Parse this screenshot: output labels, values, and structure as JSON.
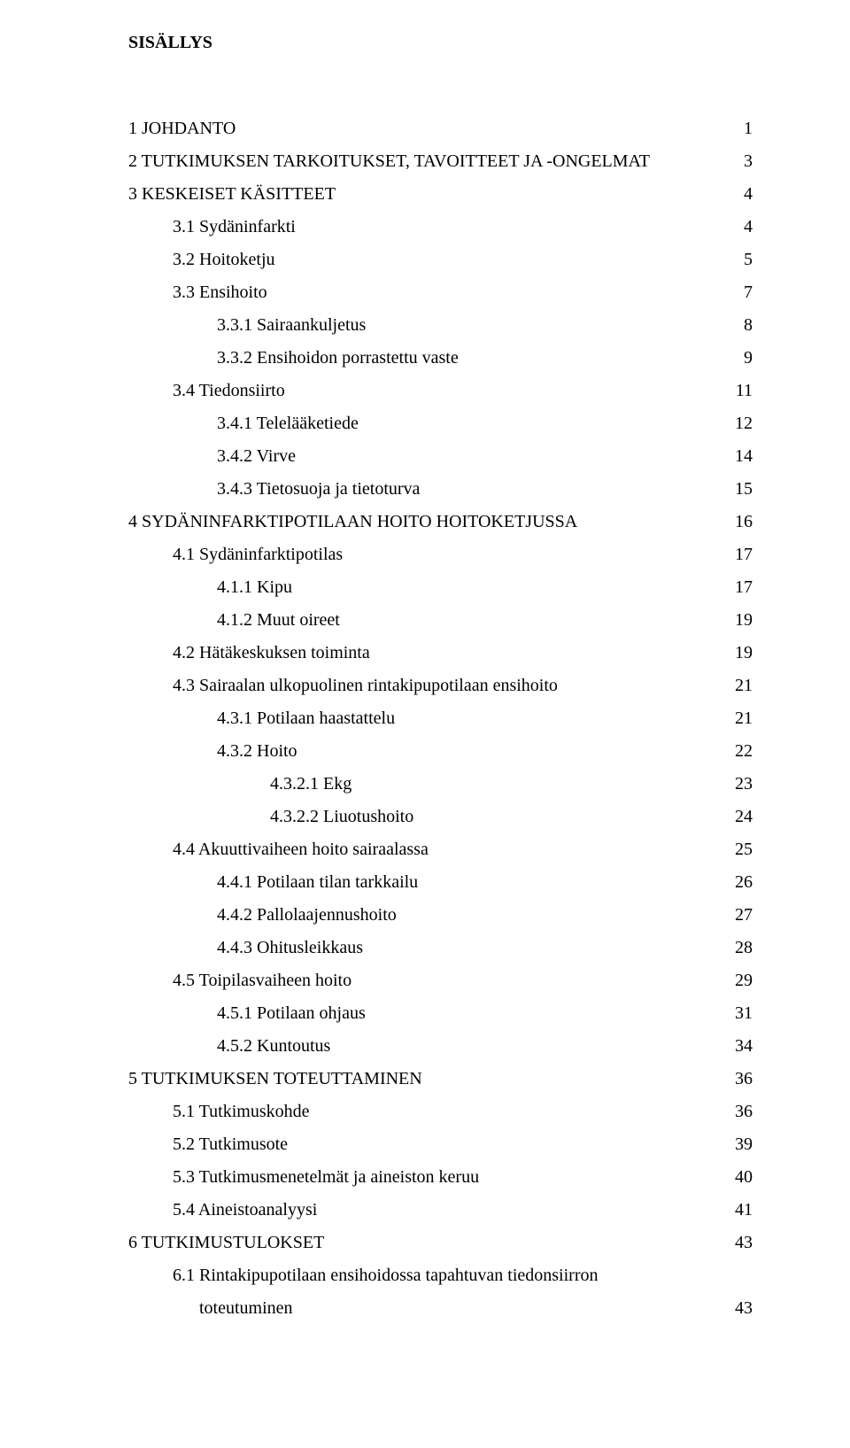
{
  "title": "SISÄLLYS",
  "entries": [
    {
      "indent": 0,
      "label": "1 JOHDANTO",
      "page": "1"
    },
    {
      "indent": 0,
      "label": "2 TUTKIMUKSEN TARKOITUKSET, TAVOITTEET JA -ONGELMAT",
      "page": "3"
    },
    {
      "indent": 0,
      "label": "3 KESKEISET KÄSITTEET",
      "page": "4"
    },
    {
      "indent": 1,
      "label": "3.1 Sydäninfarkti",
      "page": "4"
    },
    {
      "indent": 1,
      "label": "3.2 Hoitoketju",
      "page": "5"
    },
    {
      "indent": 1,
      "label": "3.3 Ensihoito",
      "page": "7"
    },
    {
      "indent": 2,
      "label": "3.3.1 Sairaankuljetus",
      "page": "8"
    },
    {
      "indent": 2,
      "label": "3.3.2 Ensihoidon porrastettu vaste",
      "page": "9"
    },
    {
      "indent": 1,
      "label": "3.4 Tiedonsiirto",
      "page": "11"
    },
    {
      "indent": 2,
      "label": "3.4.1 Telelääketiede",
      "page": "12"
    },
    {
      "indent": 2,
      "label": "3.4.2 Virve",
      "page": "14"
    },
    {
      "indent": 2,
      "label": "3.4.3 Tietosuoja ja tietoturva",
      "page": "15"
    },
    {
      "indent": 0,
      "label": "4 SYDÄNINFARKTIPOTILAAN HOITO HOITOKETJUSSA",
      "page": "16"
    },
    {
      "indent": 1,
      "label": "4.1 Sydäninfarktipotilas",
      "page": "17"
    },
    {
      "indent": 2,
      "label": "4.1.1 Kipu",
      "page": "17"
    },
    {
      "indent": 2,
      "label": "4.1.2 Muut oireet",
      "page": "19"
    },
    {
      "indent": 1,
      "label": "4.2 Hätäkeskuksen toiminta",
      "page": "19"
    },
    {
      "indent": 1,
      "label": "4.3 Sairaalan ulkopuolinen rintakipupotilaan ensihoito",
      "page": "21"
    },
    {
      "indent": 2,
      "label": "4.3.1 Potilaan haastattelu",
      "page": "21"
    },
    {
      "indent": 2,
      "label": "4.3.2 Hoito",
      "page": "22"
    },
    {
      "indent": 3,
      "label": "4.3.2.1 Ekg",
      "page": "23"
    },
    {
      "indent": 3,
      "label": "4.3.2.2 Liuotushoito",
      "page": "24"
    },
    {
      "indent": 1,
      "label": "4.4 Akuuttivaiheen hoito sairaalassa",
      "page": "25"
    },
    {
      "indent": 2,
      "label": "4.4.1 Potilaan tilan tarkkailu",
      "page": "26"
    },
    {
      "indent": 2,
      "label": "4.4.2 Pallolaajennushoito",
      "page": "27"
    },
    {
      "indent": 2,
      "label": "4.4.3 Ohitusleikkaus",
      "page": "28"
    },
    {
      "indent": 1,
      "label": "4.5 Toipilasvaiheen hoito",
      "page": "29"
    },
    {
      "indent": 2,
      "label": "4.5.1 Potilaan ohjaus",
      "page": "31"
    },
    {
      "indent": 2,
      "label": "4.5.2 Kuntoutus",
      "page": "34"
    },
    {
      "indent": 0,
      "label": "5 TUTKIMUKSEN TOTEUTTAMINEN",
      "page": "36"
    },
    {
      "indent": 1,
      "label": "5.1 Tutkimuskohde",
      "page": "36"
    },
    {
      "indent": 1,
      "label": "5.2 Tutkimusote",
      "page": "39"
    },
    {
      "indent": 1,
      "label": "5.3 Tutkimusmenetelmät ja aineiston keruu",
      "page": "40"
    },
    {
      "indent": 1,
      "label": "5.4 Aineistoanalyysi",
      "page": "41"
    },
    {
      "indent": 0,
      "label": "6 TUTKIMUSTULOKSET",
      "page": "43"
    },
    {
      "indent": 1,
      "label": "6.1 Rintakipupotilaan ensihoidossa tapahtuvan tiedonsiirron",
      "page": ""
    },
    {
      "indent": 1,
      "label": "      toteutuminen",
      "page": "43",
      "continuation": true
    }
  ]
}
